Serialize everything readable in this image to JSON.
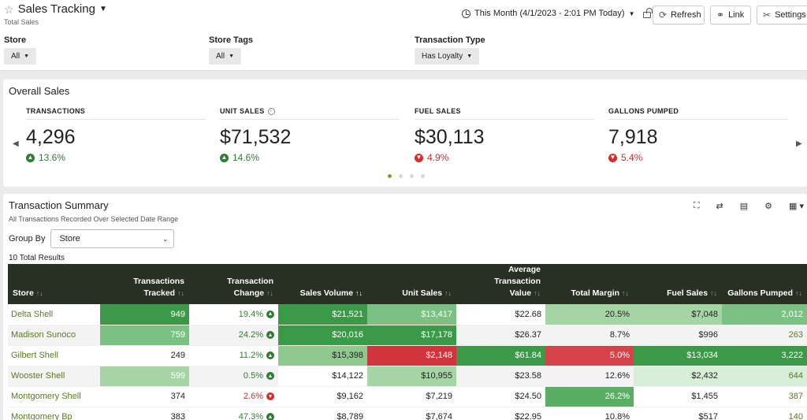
{
  "header": {
    "title": "Sales Tracking",
    "subtitle": "Total Sales",
    "date_range": "This Month (4/1/2023 - 2:01 PM Today)",
    "buttons": {
      "refresh": "Refresh",
      "link": "Link",
      "settings": "Settings"
    }
  },
  "filters": [
    {
      "label": "Store",
      "value": "All"
    },
    {
      "label": "Store Tags",
      "value": "All"
    },
    {
      "label": "Transaction Type",
      "value": "Has Loyalty"
    }
  ],
  "overall": {
    "title": "Overall Sales",
    "kpis": [
      {
        "label": "TRANSACTIONS",
        "value": "4,296",
        "change": "13.6%",
        "direction": "up"
      },
      {
        "label": "UNIT SALES",
        "value": "$71,532",
        "change": "14.6%",
        "direction": "up"
      },
      {
        "label": "FUEL SALES",
        "value": "$30,113",
        "change": "4.9%",
        "direction": "down"
      },
      {
        "label": "GALLONS PUMPED",
        "value": "7,918",
        "change": "5.4%",
        "direction": "down"
      }
    ],
    "pager": {
      "pages": 4,
      "active": 1
    }
  },
  "summary": {
    "title": "Transaction Summary",
    "subtitle": "All Transactions Recorded Over Selected Date Range",
    "group_by_label": "Group By",
    "group_by_value": "Store",
    "results": "10 Total Results",
    "columns": [
      {
        "line1": "",
        "line2": "Store"
      },
      {
        "line1": "Transactions",
        "line2": "Tracked"
      },
      {
        "line1": "Transaction",
        "line2": "Change"
      },
      {
        "line1": "",
        "line2": "Sales Volume"
      },
      {
        "line1": "",
        "line2": "Unit Sales"
      },
      {
        "line1": "Average Transaction",
        "line2": "Value"
      },
      {
        "line1": "",
        "line2": "Total Margin"
      },
      {
        "line1": "",
        "line2": "Fuel Sales"
      },
      {
        "line1": "",
        "line2": "Gallons Pumped"
      }
    ],
    "rows": [
      {
        "store": "Delta Shell",
        "tracked": "949",
        "change": "19.4%",
        "change_dir": "up",
        "sales_volume": "$21,521",
        "unit_sales": "$13,417",
        "avg_value": "$22.68",
        "margin": "20.5%",
        "fuel_sales": "$7,048",
        "gallons": "2,012"
      },
      {
        "store": "Madison Sunoco",
        "tracked": "759",
        "change": "24.2%",
        "change_dir": "up",
        "sales_volume": "$20,016",
        "unit_sales": "$17,178",
        "avg_value": "$26.37",
        "margin": "8.7%",
        "fuel_sales": "$996",
        "gallons": "263"
      },
      {
        "store": "Gilbert Shell",
        "tracked": "249",
        "change": "11.2%",
        "change_dir": "up",
        "sales_volume": "$15,398",
        "unit_sales": "$2,148",
        "avg_value": "$61.84",
        "margin": "5.0%",
        "fuel_sales": "$13,034",
        "gallons": "3,222"
      },
      {
        "store": "Wooster Shell",
        "tracked": "599",
        "change": "0.5%",
        "change_dir": "up",
        "sales_volume": "$14,122",
        "unit_sales": "$10,955",
        "avg_value": "$23.58",
        "margin": "12.6%",
        "fuel_sales": "$2,432",
        "gallons": "644"
      },
      {
        "store": "Montgomery Shell",
        "tracked": "374",
        "change": "2.6%",
        "change_dir": "down",
        "sales_volume": "$9,162",
        "unit_sales": "$7,219",
        "avg_value": "$24.50",
        "margin": "26.2%",
        "fuel_sales": "$1,455",
        "gallons": "387"
      },
      {
        "store": "Montgomery Bp",
        "tracked": "383",
        "change": "47.3%",
        "change_dir": "up",
        "sales_volume": "$8,789",
        "unit_sales": "$7,674",
        "avg_value": "$22.95",
        "margin": "10.8%",
        "fuel_sales": "$517",
        "gallons": "140"
      }
    ]
  },
  "colors": {
    "table_header": "#273022",
    "link_green": "#5b7a1e",
    "up": "#2e7d32",
    "down": "#d32f2f",
    "heat_dark_green": "#3a9a47",
    "heat_mid_green": "#7cc184",
    "heat_light_green": "#a6d5a5",
    "heat_pale_green": "#d9eed8",
    "heat_red": "#d1343d",
    "heat_pink": "#e8676d"
  }
}
